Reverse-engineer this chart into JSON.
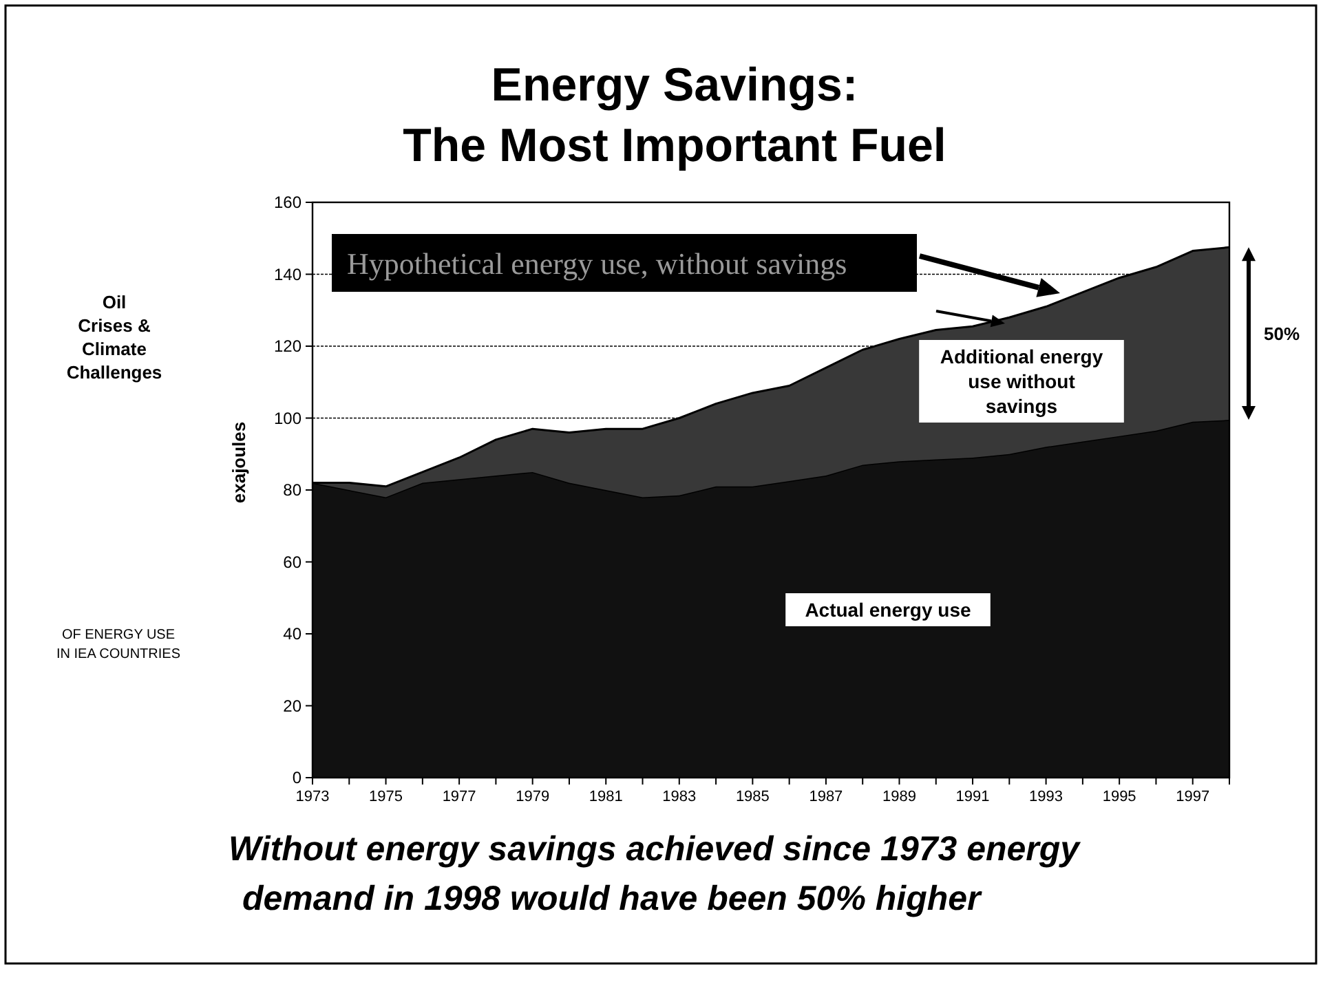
{
  "chart_data": {
    "type": "area",
    "title": "Energy Savings:\nThe Most Important Fuel",
    "ylabel": "exajoules",
    "stacked": true,
    "grid": "y",
    "x": [
      1973,
      1974,
      1975,
      1976,
      1977,
      1978,
      1979,
      1980,
      1981,
      1982,
      1983,
      1984,
      1985,
      1986,
      1987,
      1988,
      1989,
      1990,
      1991,
      1992,
      1993,
      1994,
      1995,
      1996,
      1997,
      1998
    ],
    "series": [
      {
        "name": "Actual energy use",
        "color": "#111111",
        "values": [
          82,
          80,
          78,
          82,
          83,
          84,
          85,
          82,
          80,
          78,
          78.5,
          81,
          81,
          82.5,
          84,
          87,
          88,
          88.5,
          89,
          90,
          92,
          93.5,
          95,
          96.5,
          99,
          99.5
        ]
      },
      {
        "name": "Additional energy use without savings",
        "color": "#383838",
        "values": [
          0,
          2,
          3,
          3,
          6,
          10,
          12,
          14,
          17,
          19,
          21.5,
          23,
          26,
          26.5,
          30,
          32,
          34,
          36,
          36.5,
          38,
          39,
          41.5,
          44,
          45.5,
          47.5,
          48
        ]
      }
    ],
    "xlim": [
      1973,
      1998
    ],
    "xticks": [
      1973,
      {
        "value": 1974,
        "label": null
      },
      1975,
      {
        "value": 1976,
        "label": null
      },
      1977,
      {
        "value": 1978,
        "label": null
      },
      1979,
      {
        "value": 1980,
        "label": null
      },
      1981,
      {
        "value": 1982,
        "label": null
      },
      1983,
      {
        "value": 1984,
        "label": null
      },
      1985,
      {
        "value": 1986,
        "label": null
      },
      1987,
      {
        "value": 1988,
        "label": null
      },
      1989,
      {
        "value": 1990,
        "label": null
      },
      1991,
      {
        "value": 1992,
        "label": null
      },
      1993,
      {
        "value": 1994,
        "label": null
      },
      1995,
      {
        "value": 1996,
        "label": null
      },
      1997,
      {
        "value": 1998,
        "label": null
      }
    ],
    "ylim": [
      0,
      160
    ],
    "yticks": [
      0,
      20,
      40,
      60,
      80,
      100,
      120,
      140,
      160
    ],
    "annotations": [
      "Hypothetical energy use, without savings",
      "50%",
      "Oil\nCrises &\nClimate\nChallenges",
      "OF ENERGY USE\nIN IEA COUNTRIES",
      "Without energy savings achieved since 1973 energy\ndemand in 1998 would have been 50% higher"
    ]
  }
}
